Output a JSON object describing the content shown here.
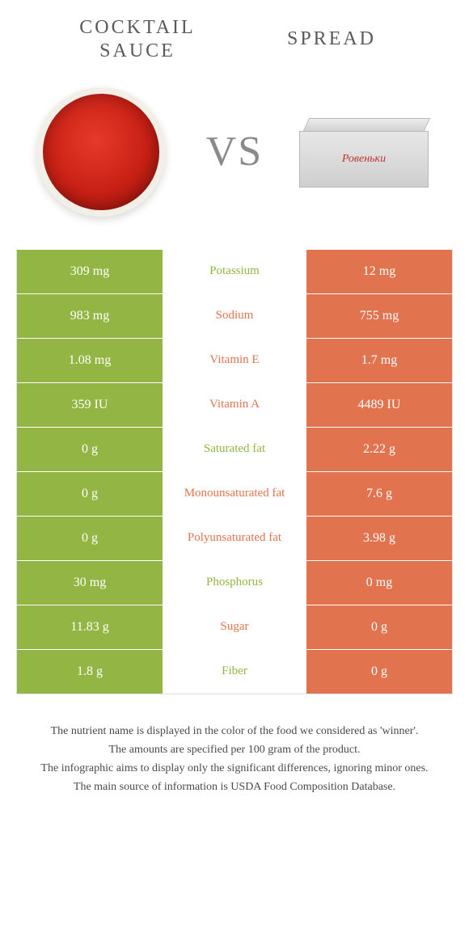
{
  "header": {
    "left_title": "COCKTAIL SAUCE",
    "right_title": "SPREAD",
    "vs": "VS"
  },
  "colors": {
    "green": "#93b544",
    "orange": "#e2734f",
    "text_gray": "#5a5a5a",
    "border": "#e0e0e0"
  },
  "table": {
    "rows": [
      {
        "left": "309 mg",
        "label": "Potassium",
        "winner": "green",
        "right": "12 mg"
      },
      {
        "left": "983 mg",
        "label": "Sodium",
        "winner": "orange",
        "right": "755 mg"
      },
      {
        "left": "1.08 mg",
        "label": "Vitamin E",
        "winner": "orange",
        "right": "1.7 mg"
      },
      {
        "left": "359 IU",
        "label": "Vitamin A",
        "winner": "orange",
        "right": "4489 IU"
      },
      {
        "left": "0 g",
        "label": "Saturated fat",
        "winner": "green",
        "right": "2.22 g"
      },
      {
        "left": "0 g",
        "label": "Monounsaturated fat",
        "winner": "orange",
        "right": "7.6 g"
      },
      {
        "left": "0 g",
        "label": "Polyunsaturated fat",
        "winner": "orange",
        "right": "3.98 g"
      },
      {
        "left": "30 mg",
        "label": "Phosphorus",
        "winner": "green",
        "right": "0 mg"
      },
      {
        "left": "11.83 g",
        "label": "Sugar",
        "winner": "orange",
        "right": "0 g"
      },
      {
        "left": "1.8 g",
        "label": "Fiber",
        "winner": "green",
        "right": "0 g"
      }
    ]
  },
  "footer": {
    "line1": "The nutrient name is displayed in the color of the food we considered as 'winner'.",
    "line2": "The amounts are specified per 100 gram of the product.",
    "line3": "The infographic aims to display only the significant differences, ignoring minor ones.",
    "line4": "The main source of information is USDA Food Composition Database."
  },
  "spread_box_label": "Ровеньки"
}
